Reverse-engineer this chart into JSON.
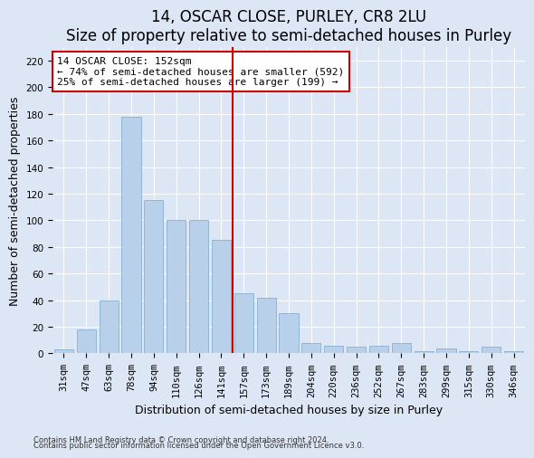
{
  "title": "14, OSCAR CLOSE, PURLEY, CR8 2LU",
  "subtitle": "Size of property relative to semi-detached houses in Purley",
  "xlabel": "Distribution of semi-detached houses by size in Purley",
  "ylabel": "Number of semi-detached properties",
  "categories": [
    "31sqm",
    "47sqm",
    "63sqm",
    "78sqm",
    "94sqm",
    "110sqm",
    "126sqm",
    "141sqm",
    "157sqm",
    "173sqm",
    "189sqm",
    "204sqm",
    "220sqm",
    "236sqm",
    "252sqm",
    "267sqm",
    "283sqm",
    "299sqm",
    "315sqm",
    "330sqm",
    "346sqm"
  ],
  "values": [
    3,
    18,
    40,
    178,
    115,
    100,
    100,
    85,
    45,
    42,
    30,
    8,
    6,
    5,
    6,
    8,
    2,
    4,
    2,
    5,
    2
  ],
  "bar_color": "#b8d0ea",
  "bar_edge_color": "#8ab0d0",
  "vline_x": 7.5,
  "vline_color": "#cc0000",
  "annotation_text": "14 OSCAR CLOSE: 152sqm\n← 74% of semi-detached houses are smaller (592)\n25% of semi-detached houses are larger (199) →",
  "annotation_box_facecolor": "#ffffff",
  "annotation_box_edgecolor": "#cc0000",
  "ylim": [
    0,
    230
  ],
  "yticks": [
    0,
    20,
    40,
    60,
    80,
    100,
    120,
    140,
    160,
    180,
    200,
    220
  ],
  "footnote1": "Contains HM Land Registry data © Crown copyright and database right 2024.",
  "footnote2": "Contains public sector information licensed under the Open Government Licence v3.0.",
  "bg_color": "#dce6f5",
  "grid_color": "#ffffff",
  "title_fontsize": 12,
  "subtitle_fontsize": 10,
  "axis_label_fontsize": 9,
  "tick_fontsize": 7.5
}
